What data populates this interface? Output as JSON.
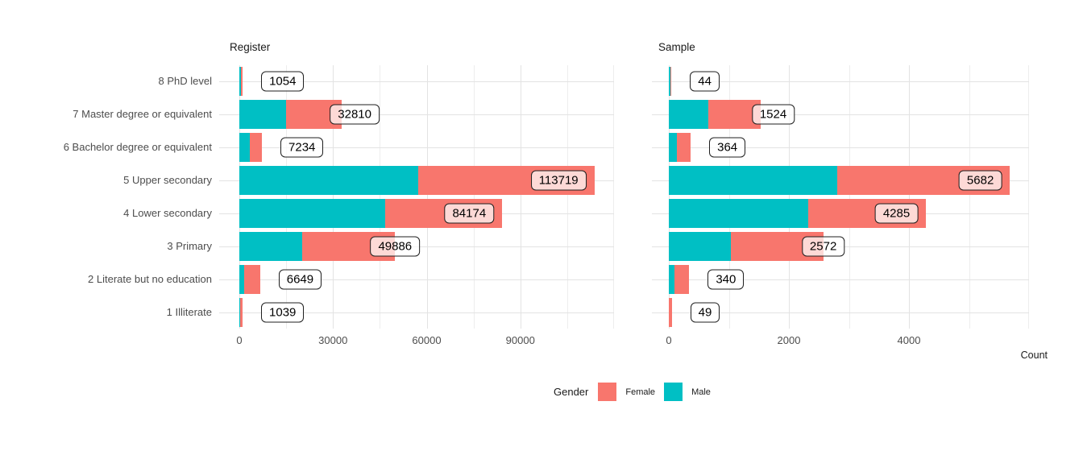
{
  "chart_data": {
    "type": "bar",
    "orientation": "horizontal",
    "stacked": true,
    "grid": true,
    "xlabel": "Count",
    "categories": [
      "8 PhD level",
      "7 Master degree or equivalent",
      "6 Bachelor degree or equivalent",
      "5 Upper secondary",
      "4 Lower secondary",
      "3 Primary",
      "2 Literate but no education",
      "1 Illiterate"
    ],
    "facets": [
      {
        "id": "register",
        "title": "Register",
        "x_max": 120000,
        "x_ticks": [
          0,
          30000,
          60000,
          90000
        ],
        "x_tick_labels": [
          "0",
          "30000",
          "60000",
          "90000"
        ],
        "x_minor": [
          15000,
          45000,
          75000,
          105000,
          120000
        ],
        "totals": [
          1054,
          32810,
          7234,
          113719,
          84174,
          49886,
          6649,
          1039
        ],
        "total_labels": [
          "1054",
          "32810",
          "7234",
          "113719",
          "84174",
          "49886",
          "6649",
          "1039"
        ],
        "series": [
          {
            "name": "Male",
            "values": [
              560,
              14970,
              3350,
              57300,
              46700,
              20100,
              1550,
              140
            ]
          },
          {
            "name": "Female",
            "values": [
              494,
              17840,
              3884,
              56419,
              37474,
              29786,
              5099,
              899
            ]
          }
        ]
      },
      {
        "id": "sample",
        "title": "Sample",
        "x_max": 6000,
        "x_ticks": [
          0,
          2000,
          4000
        ],
        "x_tick_labels": [
          "0",
          "2000",
          "4000"
        ],
        "x_minor": [
          1000,
          3000,
          5000,
          6000
        ],
        "totals": [
          44,
          1524,
          364,
          5682,
          4285,
          2572,
          340,
          49
        ],
        "total_labels": [
          "44",
          "1524",
          "364",
          "5682",
          "4285",
          "2572",
          "340",
          "49"
        ],
        "series": [
          {
            "name": "Male",
            "values": [
              22,
              658,
              134,
              2805,
              2322,
              1034,
              94,
              5
            ]
          },
          {
            "name": "Female",
            "values": [
              22,
              866,
              230,
              2877,
              1963,
              1538,
              246,
              44
            ]
          }
        ]
      }
    ],
    "legend": {
      "title": "Gender",
      "items": [
        {
          "label": "Female",
          "color": "#F8766D"
        },
        {
          "label": "Male",
          "color": "#00BFC4"
        }
      ]
    },
    "colors": {
      "female": "#F8766D",
      "male": "#00BFC4",
      "grid_major": "#e3e3e3",
      "grid_minor": "#ededed",
      "axis_text": "#4d4d4d"
    }
  }
}
